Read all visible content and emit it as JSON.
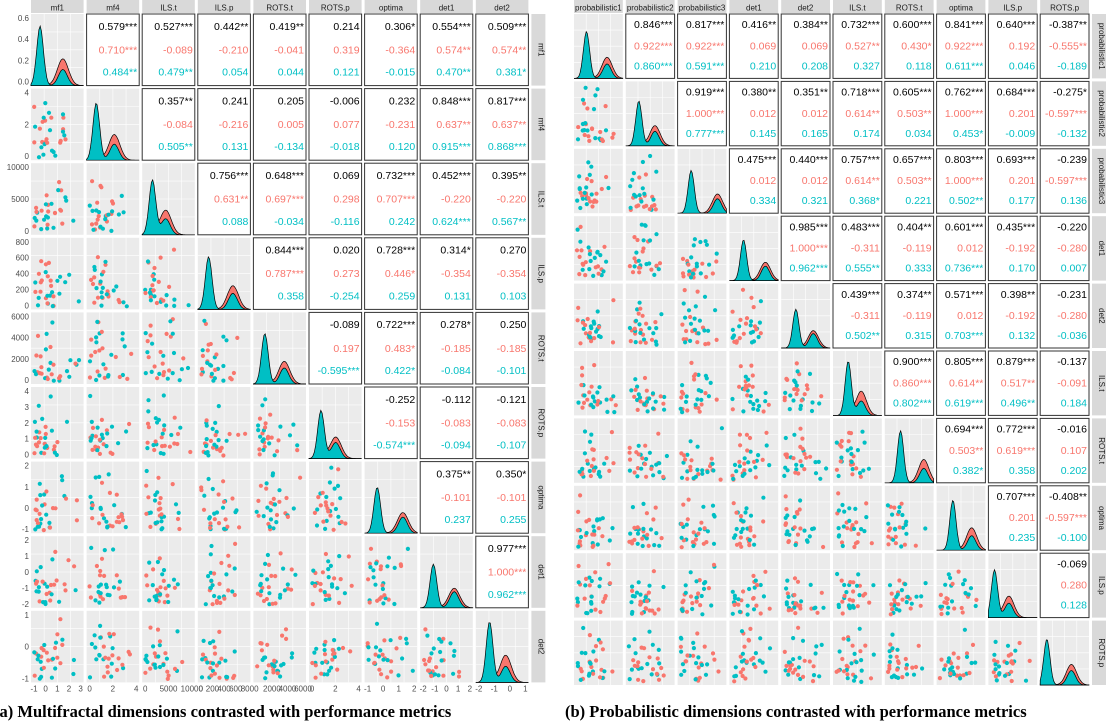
{
  "captions": {
    "a": "(a) Multifractal dimensions contrasted with performance metrics",
    "b": "(b) Probabilistic dimensions contrasted with performance metrics"
  },
  "colors": {
    "panel_bg": "#ebebeb",
    "grid": "#ffffff",
    "group_red": "#f8766d",
    "group_teal": "#00bfc4",
    "strip_bg": "#d9d9d9",
    "text": "#000000"
  },
  "chart_data": [
    {
      "type": "table",
      "title": "",
      "plot_kind": "scatterplot-matrix",
      "variables": [
        "mf1",
        "mf4",
        "ILS.t",
        "ILS.p",
        "ROTS.t",
        "ROTS.p",
        "optima",
        "det1",
        "det2"
      ],
      "x_tick_labels": [
        [
          "-1",
          "0",
          "1",
          "2",
          "3"
        ],
        [
          "0",
          "2",
          "4"
        ],
        [
          "0",
          "5000",
          "10000"
        ],
        [
          "0",
          "200",
          "400",
          "600",
          "800"
        ],
        [
          "0",
          "2000",
          "4000",
          "6000"
        ],
        [
          "0",
          "2",
          "4"
        ],
        [
          "-1",
          "0",
          "1",
          "2"
        ],
        [
          "-2",
          "-1",
          "0",
          "1",
          "2"
        ],
        [
          "-2",
          "-1",
          "0",
          "1"
        ]
      ],
      "y_tick_labels": [
        [
          "0.0",
          "0.2",
          "0.4",
          "0.6"
        ],
        [
          "0",
          "2",
          "4"
        ],
        [
          "0",
          "5000",
          "10000"
        ],
        [
          "0",
          "200",
          "400",
          "600",
          "800"
        ],
        [
          "0",
          "2000",
          "4000",
          "6000"
        ],
        [
          "0",
          "1",
          "2",
          "3",
          "4"
        ],
        [
          "-1",
          "0",
          "1",
          "2"
        ],
        [
          "-2",
          "-1",
          "0",
          "1",
          "2"
        ],
        [
          "-1",
          "0",
          "1"
        ]
      ],
      "correlations": [
        [
          "",
          "0.579***",
          "0.527***",
          "0.442**",
          "0.419**",
          "0.214",
          "0.306*",
          "0.554***",
          "0.509***"
        ],
        [
          "",
          "",
          "0.357**",
          "0.241",
          "0.205",
          "-0.006",
          "0.232",
          "0.848***",
          "0.817***"
        ],
        [
          "",
          "",
          "",
          "0.756***",
          "0.648***",
          "0.069",
          "0.732***",
          "0.452***",
          "0.395**"
        ],
        [
          "",
          "",
          "",
          "",
          "0.844***",
          "0.020",
          "0.728***",
          "0.314*",
          "0.270"
        ],
        [
          "",
          "",
          "",
          "",
          "",
          "-0.089",
          "0.722***",
          "0.278*",
          "0.250"
        ],
        [
          "",
          "",
          "",
          "",
          "",
          "",
          "-0.252",
          "-0.112",
          "-0.121"
        ],
        [
          "",
          "",
          "",
          "",
          "",
          "",
          "",
          "0.375**",
          "0.350*"
        ],
        [
          "",
          "",
          "",
          "",
          "",
          "",
          "",
          "",
          "0.977***"
        ],
        [
          "",
          "",
          "",
          "",
          "",
          "",
          "",
          "",
          ""
        ]
      ],
      "correlations_red": [
        [
          "",
          "0.710***",
          "-0.089",
          "-0.210",
          "-0.041",
          "0.319",
          "-0.364",
          "0.574**",
          "0.574**"
        ],
        [
          "",
          "",
          "-0.084",
          "-0.216",
          "0.005",
          "0.077",
          "-0.231",
          "0.637**",
          "0.637**"
        ],
        [
          "",
          "",
          "",
          "0.631**",
          "0.697***",
          "0.298",
          "0.707***",
          "-0.220",
          "-0.220"
        ],
        [
          "",
          "",
          "",
          "",
          "0.787***",
          "0.273",
          "0.446*",
          "-0.354",
          "-0.354"
        ],
        [
          "",
          "",
          "",
          "",
          "",
          "0.197",
          "0.483*",
          "-0.185",
          "-0.185"
        ],
        [
          "",
          "",
          "",
          "",
          "",
          "",
          "-0.153",
          "-0.083",
          "-0.083"
        ],
        [
          "",
          "",
          "",
          "",
          "",
          "",
          "",
          "-0.101",
          "-0.101"
        ],
        [
          "",
          "",
          "",
          "",
          "",
          "",
          "",
          "",
          "1.000***"
        ],
        [
          "",
          "",
          "",
          "",
          "",
          "",
          "",
          "",
          ""
        ]
      ],
      "correlations_teal": [
        [
          "",
          "0.484**",
          "0.479**",
          "0.054",
          "0.044",
          "0.121",
          "-0.015",
          "0.470**",
          "0.381*"
        ],
        [
          "",
          "",
          "0.505**",
          "0.131",
          "-0.134",
          "-0.018",
          "0.120",
          "0.915***",
          "0.868***"
        ],
        [
          "",
          "",
          "",
          "0.088",
          "-0.034",
          "-0.116",
          "0.242",
          "0.624***",
          "0.567**"
        ],
        [
          "",
          "",
          "",
          "",
          "0.358",
          "-0.254",
          "0.259",
          "0.131",
          "0.103"
        ],
        [
          "",
          "",
          "",
          "",
          "",
          "-0.595***",
          "0.422*",
          "-0.084",
          "-0.101"
        ],
        [
          "",
          "",
          "",
          "",
          "",
          "",
          "-0.574***",
          "-0.094",
          "-0.107"
        ],
        [
          "",
          "",
          "",
          "",
          "",
          "",
          "",
          "0.237",
          "0.255"
        ],
        [
          "",
          "",
          "",
          "",
          "",
          "",
          "",
          "",
          "0.962***"
        ],
        [
          "",
          "",
          "",
          "",
          "",
          "",
          "",
          "",
          ""
        ]
      ]
    },
    {
      "type": "table",
      "title": "",
      "plot_kind": "scatterplot-matrix",
      "variables": [
        "probabilistic1",
        "probabilistic2",
        "probabilistic3",
        "det1",
        "det2",
        "ILS.t",
        "ROTS.t",
        "optima",
        "ILS.p",
        "ROTS.p"
      ],
      "correlations": [
        [
          "",
          "0.846***",
          "0.817***",
          "0.416**",
          "0.384**",
          "0.732***",
          "0.600***",
          "0.841***",
          "0.640***",
          "-0.387**"
        ],
        [
          "",
          "",
          "0.919***",
          "0.380**",
          "0.351**",
          "0.718***",
          "0.605***",
          "0.762***",
          "0.684***",
          "-0.275*"
        ],
        [
          "",
          "",
          "",
          "0.475***",
          "0.440***",
          "0.757***",
          "0.657***",
          "0.803***",
          "0.693***",
          "-0.239"
        ],
        [
          "",
          "",
          "",
          "",
          "0.985***",
          "0.483***",
          "0.404**",
          "0.601***",
          "0.435***",
          "-0.220"
        ],
        [
          "",
          "",
          "",
          "",
          "",
          "0.439***",
          "0.374**",
          "0.571***",
          "0.398**",
          "-0.231"
        ],
        [
          "",
          "",
          "",
          "",
          "",
          "",
          "0.900***",
          "0.805***",
          "0.879***",
          "-0.137"
        ],
        [
          "",
          "",
          "",
          "",
          "",
          "",
          "",
          "0.694***",
          "0.772***",
          "-0.016"
        ],
        [
          "",
          "",
          "",
          "",
          "",
          "",
          "",
          "",
          "0.707***",
          "-0.408**"
        ],
        [
          "",
          "",
          "",
          "",
          "",
          "",
          "",
          "",
          "",
          "-0.069"
        ],
        [
          "",
          "",
          "",
          "",
          "",
          "",
          "",
          "",
          "",
          ""
        ]
      ],
      "correlations_red": [
        [
          "",
          "0.922***",
          "0.922***",
          "0.069",
          "0.069",
          "0.527**",
          "0.430*",
          "0.922***",
          "0.192",
          "-0.555**"
        ],
        [
          "",
          "",
          "1.000***",
          "0.012",
          "0.012",
          "0.614**",
          "0.503**",
          "1.000***",
          "0.201",
          "-0.597***"
        ],
        [
          "",
          "",
          "",
          "0.012",
          "0.012",
          "0.614**",
          "0.503**",
          "1.000***",
          "0.201",
          "-0.597***"
        ],
        [
          "",
          "",
          "",
          "",
          "1.000***",
          "-0.311",
          "-0.119",
          "0.012",
          "-0.192",
          "-0.280"
        ],
        [
          "",
          "",
          "",
          "",
          "",
          "-0.311",
          "-0.119",
          "0.012",
          "-0.192",
          "-0.280"
        ],
        [
          "",
          "",
          "",
          "",
          "",
          "",
          "0.860***",
          "0.614**",
          "0.517**",
          "-0.091"
        ],
        [
          "",
          "",
          "",
          "",
          "",
          "",
          "",
          "0.503**",
          "0.619***",
          "0.107"
        ],
        [
          "",
          "",
          "",
          "",
          "",
          "",
          "",
          "",
          "0.201",
          "-0.597***"
        ],
        [
          "",
          "",
          "",
          "",
          "",
          "",
          "",
          "",
          "",
          "0.280"
        ],
        [
          "",
          "",
          "",
          "",
          "",
          "",
          "",
          "",
          "",
          ""
        ]
      ],
      "correlations_teal": [
        [
          "",
          "0.860***",
          "0.591***",
          "0.210",
          "0.208",
          "0.327",
          "0.118",
          "0.611***",
          "0.046",
          "-0.189"
        ],
        [
          "",
          "",
          "0.777***",
          "0.145",
          "0.165",
          "0.174",
          "0.034",
          "0.453*",
          "-0.009",
          "-0.132"
        ],
        [
          "",
          "",
          "",
          "0.334",
          "0.321",
          "0.368*",
          "0.221",
          "0.502**",
          "0.177",
          "0.136"
        ],
        [
          "",
          "",
          "",
          "",
          "0.962***",
          "0.555**",
          "0.333",
          "0.736***",
          "0.170",
          "0.007"
        ],
        [
          "",
          "",
          "",
          "",
          "",
          "0.502**",
          "0.315",
          "0.703***",
          "0.132",
          "-0.036"
        ],
        [
          "",
          "",
          "",
          "",
          "",
          "",
          "0.802***",
          "0.619***",
          "0.496**",
          "0.184"
        ],
        [
          "",
          "",
          "",
          "",
          "",
          "",
          "",
          "0.382*",
          "0.358",
          "0.202"
        ],
        [
          "",
          "",
          "",
          "",
          "",
          "",
          "",
          "",
          "0.235",
          "-0.100"
        ],
        [
          "",
          "",
          "",
          "",
          "",
          "",
          "",
          "",
          "",
          "0.128"
        ],
        [
          "",
          "",
          "",
          "",
          "",
          "",
          "",
          "",
          "",
          ""
        ]
      ]
    }
  ]
}
